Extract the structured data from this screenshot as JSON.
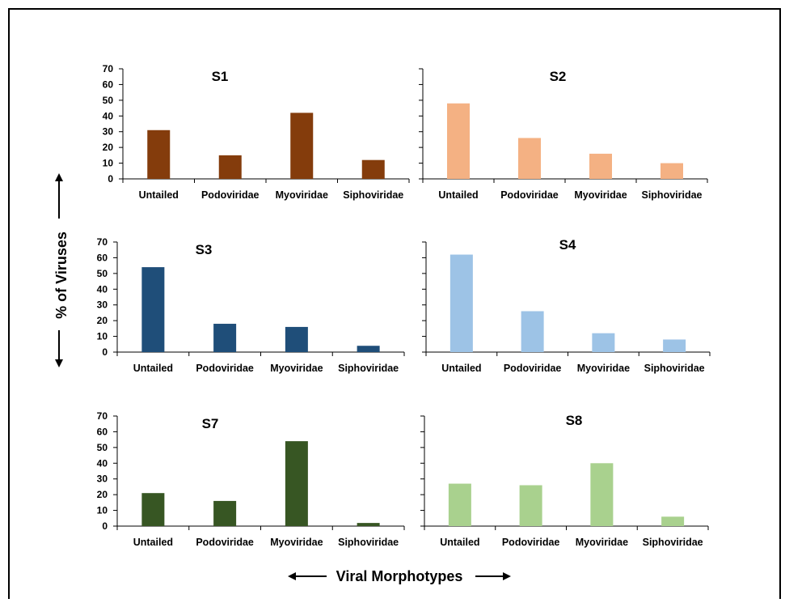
{
  "figure": {
    "ylabel": "% of Viruses",
    "xlabel": "Viral Morphotypes"
  },
  "chart_data": [
    {
      "type": "bar",
      "title": "S1",
      "categories": [
        "Untailed",
        "Podoviridae",
        "Myoviridae",
        "Siphoviridae"
      ],
      "values": [
        31,
        15,
        42,
        12
      ],
      "ylim": [
        0,
        70
      ],
      "yticks": [
        0,
        10,
        20,
        30,
        40,
        50,
        60,
        70
      ],
      "show_tick_labels": true,
      "color": "#843c0c"
    },
    {
      "type": "bar",
      "title": "S2",
      "categories": [
        "Untailed",
        "Podoviridae",
        "Myoviridae",
        "Siphoviridae"
      ],
      "values": [
        48,
        26,
        16,
        10
      ],
      "ylim": [
        0,
        70
      ],
      "yticks": [
        0,
        10,
        20,
        30,
        40,
        50,
        60,
        70
      ],
      "show_tick_labels": false,
      "color": "#f4b183"
    },
    {
      "type": "bar",
      "title": "S3",
      "categories": [
        "Untailed",
        "Podoviridae",
        "Myoviridae",
        "Siphoviridae"
      ],
      "values": [
        54,
        18,
        16,
        4
      ],
      "ylim": [
        0,
        70
      ],
      "yticks": [
        0,
        10,
        20,
        30,
        40,
        50,
        60,
        70
      ],
      "show_tick_labels": true,
      "color": "#1f4e79"
    },
    {
      "type": "bar",
      "title": "S4",
      "categories": [
        "Untailed",
        "Podoviridae",
        "Myoviridae",
        "Siphoviridae"
      ],
      "values": [
        62,
        26,
        12,
        8
      ],
      "ylim": [
        0,
        70
      ],
      "yticks": [
        0,
        10,
        20,
        30,
        40,
        50,
        60,
        70
      ],
      "show_tick_labels": false,
      "color": "#9dc3e6"
    },
    {
      "type": "bar",
      "title": "S7",
      "categories": [
        "Untailed",
        "Podoviridae",
        "Myoviridae",
        "Siphoviridae"
      ],
      "values": [
        21,
        16,
        54,
        2
      ],
      "ylim": [
        0,
        70
      ],
      "yticks": [
        0,
        10,
        20,
        30,
        40,
        50,
        60,
        70
      ],
      "show_tick_labels": true,
      "color": "#375623"
    },
    {
      "type": "bar",
      "title": "S8",
      "categories": [
        "Untailed",
        "Podoviridae",
        "Myoviridae",
        "Siphoviridae"
      ],
      "values": [
        27,
        26,
        40,
        6
      ],
      "ylim": [
        0,
        70
      ],
      "yticks": [
        0,
        10,
        20,
        30,
        40,
        50,
        60,
        70
      ],
      "show_tick_labels": false,
      "color": "#a9d18e"
    }
  ]
}
